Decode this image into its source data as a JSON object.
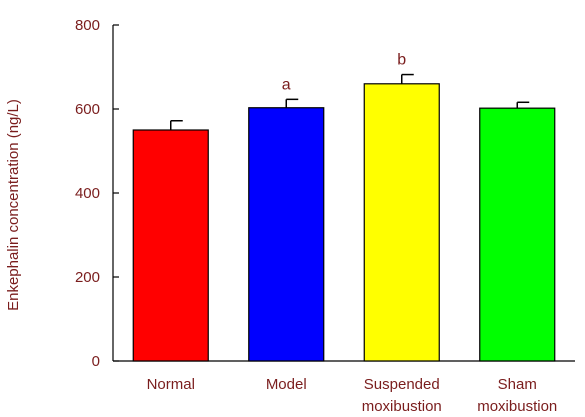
{
  "chart_data": {
    "type": "bar",
    "title": "",
    "xlabel": "",
    "ylabel": "Enkephalin concentration (ng/L)",
    "ylim": [
      0,
      800
    ],
    "yticks": [
      "0",
      "200",
      "400",
      "600",
      "800"
    ],
    "categories": [
      [
        "Normal"
      ],
      [
        "Model"
      ],
      [
        "Suspended",
        "moxibustion"
      ],
      [
        "Sham",
        "moxibustion"
      ]
    ],
    "values": [
      550,
      603,
      660,
      602
    ],
    "errors": [
      22,
      20,
      22,
      14
    ],
    "colors": [
      "#ff0000",
      "#0000ff",
      "#ffff00",
      "#00ff00"
    ],
    "annotations": [
      "",
      "a",
      "b",
      ""
    ],
    "grid": false,
    "legend": "none"
  },
  "style": {
    "text_color": "#7a1d1d",
    "axis_color": "#000000"
  }
}
